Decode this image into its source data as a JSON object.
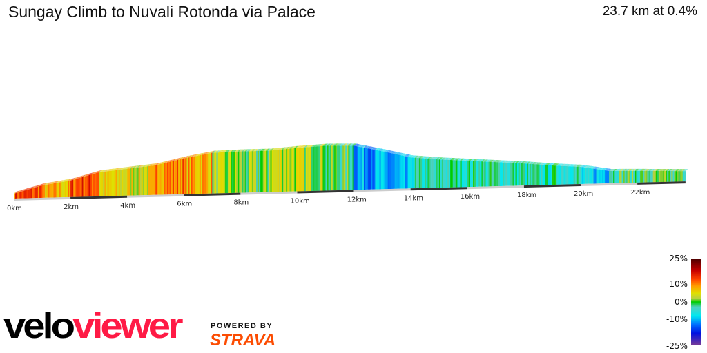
{
  "header": {
    "title": "Sungay Climb to Nuvali Rotonda via Palace",
    "stats": "23.7 km at 0.4%"
  },
  "chart_data": {
    "type": "area",
    "title": "Sungay Climb to Nuvali Rotonda via Palace",
    "distance_km": [
      0,
      1,
      2,
      3,
      4,
      5,
      6,
      7,
      8,
      9,
      10,
      11,
      12,
      13,
      14,
      15,
      16,
      17,
      18,
      19,
      20,
      21,
      22,
      23.7
    ],
    "relative_elevation_m": [
      60,
      192,
      264,
      396,
      444,
      492,
      600,
      684,
      696,
      696,
      732,
      756,
      744,
      636,
      516,
      468,
      432,
      396,
      360,
      312,
      276,
      192,
      180,
      156
    ],
    "x_ticks": [
      "0km",
      "2km",
      "4km",
      "6km",
      "8km",
      "10km",
      "12km",
      "14km",
      "16km",
      "18km",
      "20km",
      "22km"
    ],
    "x_tick_values": [
      0,
      2,
      4,
      6,
      8,
      10,
      12,
      14,
      16,
      18,
      20,
      22
    ],
    "color_by": "gradient",
    "gradient_scale": {
      "labels": [
        "25%",
        "10%",
        "0%",
        "-10%",
        "-25%"
      ],
      "stops": [
        {
          "pct": 25,
          "color": "#4a0000"
        },
        {
          "pct": 18,
          "color": "#c80000"
        },
        {
          "pct": 13,
          "color": "#ff4400"
        },
        {
          "pct": 9,
          "color": "#ffa000"
        },
        {
          "pct": 5,
          "color": "#e0e000"
        },
        {
          "pct": 2,
          "color": "#b8d040"
        },
        {
          "pct": 0,
          "color": "#00cc00"
        },
        {
          "pct": -3,
          "color": "#50d0c0"
        },
        {
          "pct": -8,
          "color": "#00e8f0"
        },
        {
          "pct": -13,
          "color": "#0070ff"
        },
        {
          "pct": -18,
          "color": "#0010e0"
        },
        {
          "pct": -25,
          "color": "#7a3c96"
        }
      ]
    }
  },
  "branding": {
    "logo_a": "velo",
    "logo_b": "viewer",
    "powered_by": "POWERED BY",
    "strava": "STRAVA"
  }
}
